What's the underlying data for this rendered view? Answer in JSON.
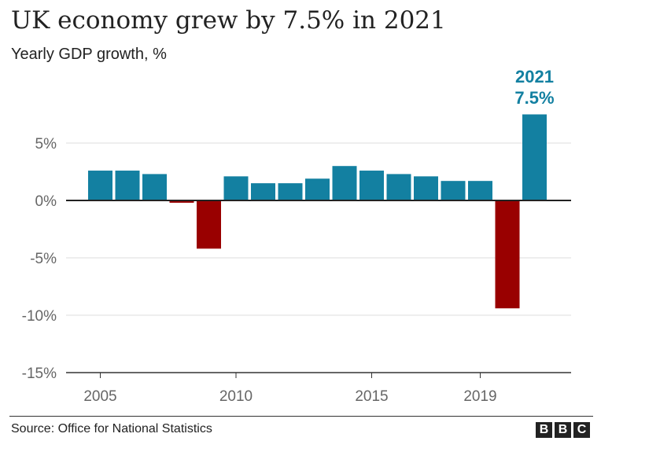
{
  "title": "UK economy grew by 7.5% in 2021",
  "subtitle": "Yearly GDP growth, %",
  "source": "Source: Office for National Statistics",
  "logo": "BBC",
  "chart_data": {
    "type": "bar",
    "x": [
      2005,
      2006,
      2007,
      2008,
      2009,
      2010,
      2011,
      2012,
      2013,
      2014,
      2015,
      2016,
      2017,
      2018,
      2019,
      2020,
      2021
    ],
    "values": [
      2.6,
      2.6,
      2.3,
      -0.2,
      -4.2,
      2.1,
      1.5,
      1.5,
      1.9,
      3.0,
      2.6,
      2.3,
      2.1,
      1.7,
      1.7,
      -9.4,
      7.5
    ],
    "ylim": [
      -15,
      10
    ],
    "yticks": [
      5,
      0,
      -5,
      -10,
      -15
    ],
    "ytick_labels": [
      "5%",
      "0%",
      "-5%",
      "-10%",
      "-15%"
    ],
    "xticks": [
      2005,
      2010,
      2015,
      2019
    ],
    "xtick_labels": [
      "2005",
      "2010",
      "2015",
      "2019"
    ],
    "colors": {
      "positive": "#1380a1",
      "negative": "#990000",
      "highlight_text": "#1380a1",
      "grid": "#dddddd",
      "tick_text": "#666666"
    },
    "annotation": {
      "x": 2021,
      "lines": [
        "2021",
        "7.5%"
      ]
    },
    "grid": true,
    "legend": "none"
  }
}
